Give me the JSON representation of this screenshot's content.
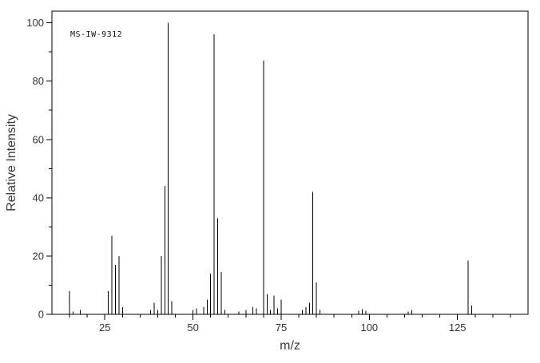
{
  "header": {
    "spectrum_id": "MS-IW-9312"
  },
  "colors": {
    "peak": "#000000",
    "frame": "#000000",
    "tick": "#000000",
    "text": "#3a3a3a"
  },
  "chart_data": {
    "type": "bar",
    "subtype": "mass-spectrum-stick-plot",
    "title": "",
    "annotation": "MS-IW-9312",
    "xlabel": "m/z",
    "ylabel": "Relative Intensity",
    "xlim": [
      10,
      145
    ],
    "ylim": [
      0,
      104
    ],
    "grid": false,
    "legend": "none",
    "x_major_ticks": [
      25,
      50,
      75,
      100,
      125
    ],
    "x_minor_ticks": [
      15,
      20,
      30,
      35,
      40,
      45,
      55,
      60,
      65,
      70,
      80,
      85,
      90,
      95,
      105,
      110,
      115,
      120,
      130,
      135,
      140
    ],
    "y_major_ticks": [
      0,
      20,
      40,
      60,
      80,
      100
    ],
    "y_minor_ticks": [
      10,
      30,
      50,
      70,
      90
    ],
    "peaks": [
      [
        15,
        8
      ],
      [
        16,
        1
      ],
      [
        18,
        1.5
      ],
      [
        26,
        8
      ],
      [
        27,
        27
      ],
      [
        28,
        17
      ],
      [
        29,
        20
      ],
      [
        30,
        2.5
      ],
      [
        38,
        1.5
      ],
      [
        39,
        4
      ],
      [
        40,
        1.5
      ],
      [
        41,
        20
      ],
      [
        42,
        44
      ],
      [
        43,
        100
      ],
      [
        44,
        4.5
      ],
      [
        50,
        1.5
      ],
      [
        51,
        2
      ],
      [
        53,
        2.5
      ],
      [
        54,
        5
      ],
      [
        55,
        14
      ],
      [
        56,
        96
      ],
      [
        57,
        33
      ],
      [
        58,
        14.5
      ],
      [
        59,
        1.5
      ],
      [
        63,
        1
      ],
      [
        65,
        1.5
      ],
      [
        67,
        2.5
      ],
      [
        68,
        2
      ],
      [
        70,
        87
      ],
      [
        71,
        7
      ],
      [
        72,
        1.5
      ],
      [
        73,
        6.5
      ],
      [
        74,
        2
      ],
      [
        75,
        5
      ],
      [
        81,
        1.5
      ],
      [
        82,
        2.5
      ],
      [
        83,
        4
      ],
      [
        84,
        42
      ],
      [
        85,
        11
      ],
      [
        86,
        1.5
      ],
      [
        97,
        1.2
      ],
      [
        98,
        1.8
      ],
      [
        99,
        1.2
      ],
      [
        111,
        1
      ],
      [
        112,
        1.5
      ],
      [
        128,
        18.5
      ],
      [
        129,
        3
      ]
    ]
  }
}
